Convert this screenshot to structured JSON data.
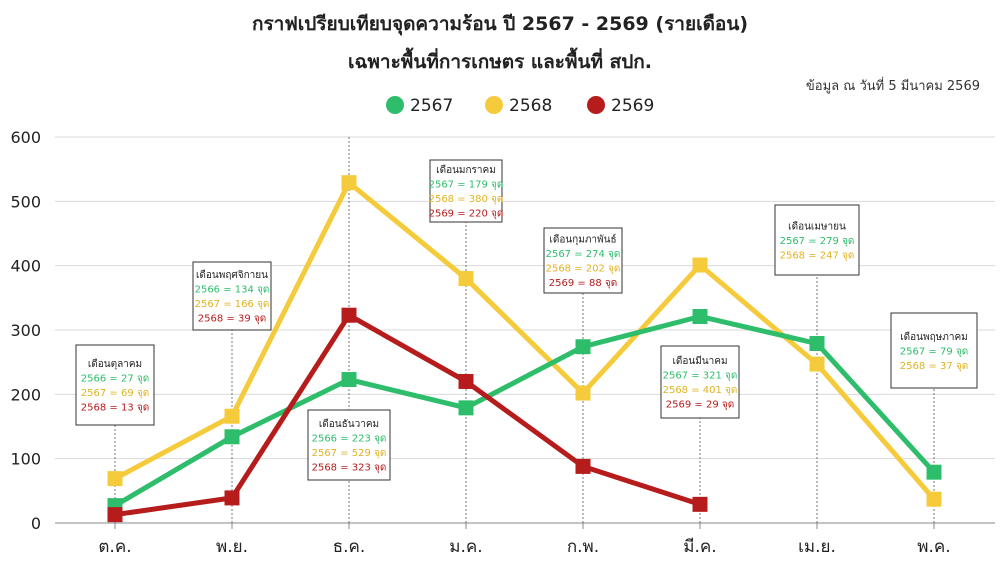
{
  "chart_data": {
    "type": "line",
    "title": "กราฟเปรียบเทียบจุดความร้อน ปี 2567 - 2569 (รายเดือน)",
    "subtitle": "เฉพาะพื้นที่การเกษตร และพื้นที่ สปก.",
    "note": "ข้อมูล ณ วันที่ 5 มีนาคม 2569",
    "categories": [
      "ต.ค.",
      "พ.ย.",
      "ธ.ค.",
      "ม.ค.",
      "ก.พ.",
      "มี.ค.",
      "เม.ย.",
      "พ.ค."
    ],
    "yticks": [
      "0",
      "100",
      "200",
      "300",
      "400",
      "500",
      "600"
    ],
    "ylim": [
      0,
      600
    ],
    "grid": true,
    "legend_position": "top-center",
    "series": [
      {
        "name": "2567",
        "color": "#2ebd6b",
        "values": [
          27,
          134,
          223,
          179,
          274,
          321,
          279,
          79
        ]
      },
      {
        "name": "2568",
        "color": "#f5cb3c",
        "values": [
          69,
          166,
          529,
          380,
          202,
          401,
          247,
          37
        ]
      },
      {
        "name": "2569",
        "color": "#b61c1c",
        "values": [
          13,
          39,
          323,
          220,
          88,
          29,
          null,
          null
        ]
      }
    ],
    "annotations": [
      {
        "title": "เดือนตุลาคม",
        "lines": [
          {
            "text": "2566 = 27 จุด",
            "color": "#2ebd6b"
          },
          {
            "text": "2567 = 69 จุด",
            "color": "#e0b322"
          },
          {
            "text": "2568 = 13 จุด",
            "color": "#b61c1c"
          }
        ]
      },
      {
        "title": "เดือนพฤศจิกายน",
        "lines": [
          {
            "text": "2566 = 134 จุด",
            "color": "#2ebd6b"
          },
          {
            "text": "2567 = 166 จุด",
            "color": "#e0b322"
          },
          {
            "text": "2568 = 39 จุด",
            "color": "#b61c1c"
          }
        ]
      },
      {
        "title": "เดือนธันวาคม",
        "lines": [
          {
            "text": "2566 = 223 จุด",
            "color": "#2ebd6b"
          },
          {
            "text": "2567 = 529 จุด",
            "color": "#e0b322"
          },
          {
            "text": "2568 = 323 จุด",
            "color": "#b61c1c"
          }
        ]
      },
      {
        "title": "เดือนมกราคม",
        "lines": [
          {
            "text": "2567 = 179 จุด",
            "color": "#2ebd6b"
          },
          {
            "text": "2568 = 380 จุด",
            "color": "#e0b322"
          },
          {
            "text": "2569 = 220 จุด",
            "color": "#b61c1c"
          }
        ]
      },
      {
        "title": "เดือนกุมภาพันธ์",
        "lines": [
          {
            "text": "2567 = 274 จุด",
            "color": "#2ebd6b"
          },
          {
            "text": "2568 = 202 จุด",
            "color": "#e0b322"
          },
          {
            "text": "2569 = 88 จุด",
            "color": "#b61c1c"
          }
        ]
      },
      {
        "title": "เดือนมีนาคม",
        "lines": [
          {
            "text": "2567 = 321 จุด",
            "color": "#2ebd6b"
          },
          {
            "text": "2568 = 401 จุด",
            "color": "#e0b322"
          },
          {
            "text": "2569 = 29 จุด",
            "color": "#b61c1c"
          }
        ]
      },
      {
        "title": "เดือนเมษายน",
        "lines": [
          {
            "text": "2567 = 279 จุด",
            "color": "#2ebd6b"
          },
          {
            "text": "2568 = 247 จุด",
            "color": "#e0b322"
          }
        ]
      },
      {
        "title": "เดือนพฤษภาคม",
        "lines": [
          {
            "text": "2567 = 79 จุด",
            "color": "#2ebd6b"
          },
          {
            "text": "2568 = 37 จุด",
            "color": "#e0b322"
          }
        ]
      }
    ]
  }
}
